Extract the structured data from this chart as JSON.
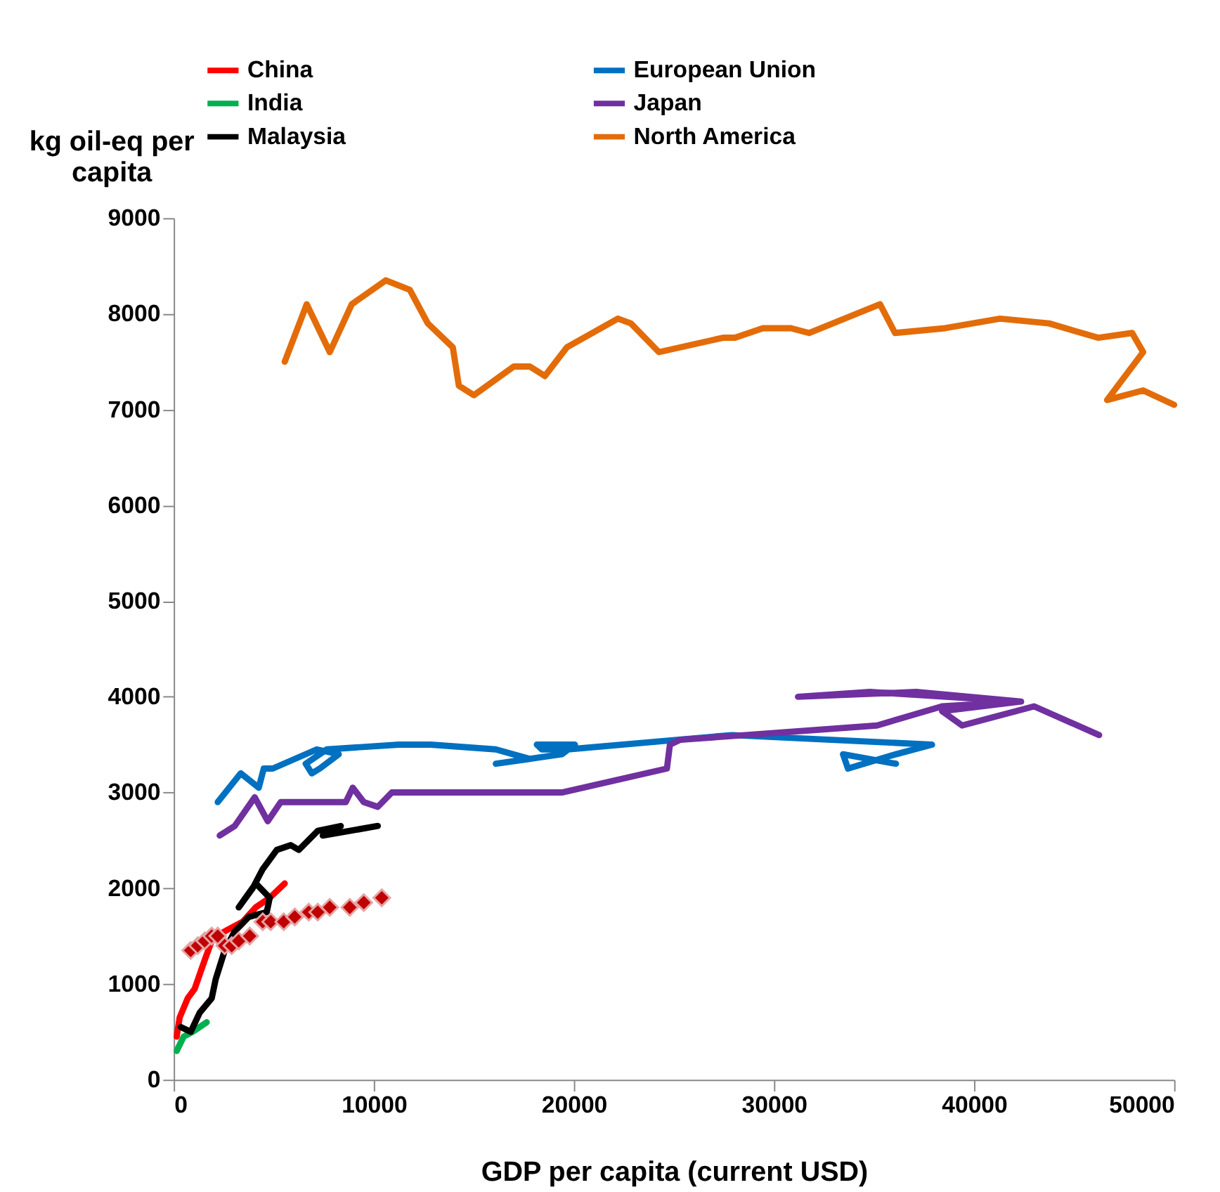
{
  "chart_data": {
    "type": "line",
    "xlabel": "GDP per capita (current USD)",
    "ylabel": "kg oil-eq per capita",
    "xlim": [
      0,
      50000
    ],
    "ylim": [
      0,
      9000
    ],
    "xticks": [
      0,
      10000,
      20000,
      30000,
      40000,
      50000
    ],
    "yticks": [
      0,
      1000,
      2000,
      3000,
      4000,
      5000,
      6000,
      7000,
      8000,
      9000
    ],
    "grid": false,
    "legend": "top",
    "series": [
      {
        "name": "China",
        "color": "#ff0000",
        "x": [
          150,
          300,
          700,
          1050,
          1550,
          1900,
          2550,
          3450,
          4100,
          4800,
          5550
        ],
        "values": [
          450,
          650,
          850,
          950,
          1250,
          1450,
          1550,
          1650,
          1800,
          1900,
          2050
        ]
      },
      {
        "name": "European Union",
        "color": "#0070c0",
        "x": [
          2200,
          3350,
          4250,
          4500,
          4950,
          7150,
          8250,
          7300,
          6900,
          6600,
          7650,
          11250,
          12850,
          16100,
          17800,
          16100,
          19400,
          20050,
          18150,
          18400,
          19700,
          27900,
          37900,
          36100,
          33700,
          33450,
          36100
        ],
        "values": [
          2900,
          3200,
          3050,
          3250,
          3250,
          3450,
          3400,
          3250,
          3200,
          3300,
          3450,
          3500,
          3500,
          3450,
          3350,
          3300,
          3400,
          3500,
          3500,
          3450,
          3450,
          3600,
          3500,
          3400,
          3250,
          3400,
          3300
        ]
      },
      {
        "name": "India",
        "color": "#00b050",
        "x": [
          150,
          500,
          950,
          1650
        ],
        "values": [
          300,
          450,
          500,
          600
        ]
      },
      {
        "name": "Japan",
        "color": "#7030a0",
        "x": [
          2300,
          3050,
          4050,
          4700,
          5350,
          8600,
          8950,
          9500,
          10200,
          10900,
          19400,
          24650,
          24800,
          25300,
          35150,
          38400,
          42350,
          37100,
          31200,
          34800,
          42350,
          38400,
          39400,
          43000,
          46250
        ],
        "values": [
          2550,
          2650,
          2950,
          2700,
          2900,
          2900,
          3050,
          2900,
          2850,
          3000,
          3000,
          3250,
          3500,
          3550,
          3700,
          3900,
          3950,
          4050,
          4000,
          4050,
          3950,
          3850,
          3700,
          3900,
          3600
        ]
      },
      {
        "name": "Malaysia",
        "color": "#000000",
        "x": [
          350,
          850,
          1300,
          1900,
          2100,
          2550,
          3050,
          3750,
          4650,
          4800,
          4100,
          3250,
          3950,
          4450,
          5150,
          5850,
          6250,
          7200,
          8350,
          7450,
          10200
        ],
        "values": [
          550,
          500,
          700,
          850,
          1050,
          1350,
          1550,
          1700,
          1750,
          1900,
          2050,
          1800,
          2000,
          2200,
          2400,
          2450,
          2400,
          2600,
          2650,
          2550,
          2650
        ]
      },
      {
        "name": "North America",
        "color": "#e36c09",
        "x": [
          5550,
          6650,
          7800,
          8900,
          10600,
          11800,
          12700,
          13950,
          14250,
          15000,
          17000,
          17800,
          18550,
          19650,
          22200,
          22850,
          24250,
          27450,
          28050,
          29450,
          30850,
          31750,
          35300,
          36050,
          38550,
          41300,
          43750,
          46200,
          47900,
          48450,
          46650,
          48450,
          50000
        ],
        "values": [
          7500,
          8100,
          7600,
          8100,
          8350,
          8250,
          7900,
          7650,
          7250,
          7150,
          7450,
          7450,
          7350,
          7650,
          7950,
          7900,
          7600,
          7750,
          7750,
          7850,
          7850,
          7800,
          8100,
          7800,
          7850,
          7950,
          7900,
          7750,
          7800,
          7600,
          7100,
          7200,
          7050
        ]
      },
      {
        "color": "#c00000",
        "type": "scatter",
        "marker": "diamond",
        "x": [
          850,
          1200,
          1550,
          1900,
          2200,
          2550,
          2900,
          3250,
          3800,
          4450,
          4850,
          5500,
          6050,
          6750,
          7200,
          7800,
          8800,
          9500,
          10400
        ],
        "values": [
          1350,
          1400,
          1450,
          1500,
          1500,
          1400,
          1400,
          1450,
          1500,
          1650,
          1650,
          1650,
          1700,
          1750,
          1750,
          1800,
          1800,
          1850,
          1900
        ]
      }
    ]
  }
}
